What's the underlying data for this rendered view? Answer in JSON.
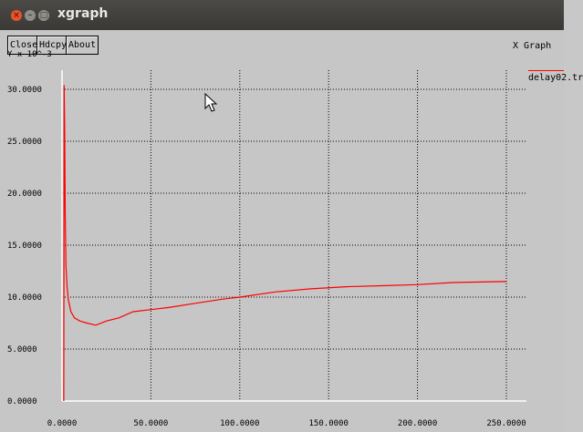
{
  "window": {
    "title": "xgraph",
    "controls": [
      "close-icon",
      "minimize-icon",
      "maximize-icon"
    ]
  },
  "toolbar": {
    "close_label": "Close",
    "hdcpy_label": "Hdcpy",
    "about_label": "About"
  },
  "graph_title": "X Graph",
  "y_units": "Y x 10^-3",
  "legend": {
    "label": "delay02.tr"
  },
  "colors": {
    "series": "#ff0000",
    "axis": "#ffffff",
    "grid": "#000000",
    "background": "#c6c6c6"
  },
  "chart_data": {
    "type": "line",
    "title": "X Graph",
    "xlabel": "",
    "ylabel": "Y x 10^-3",
    "xlim": [
      0,
      250000
    ],
    "ylim": [
      0,
      30000
    ],
    "grid": true,
    "legend": "top-right",
    "x_ticks": [
      "0.0000",
      "50.0000",
      "100.0000",
      "150.0000",
      "200.0000",
      "250.0000"
    ],
    "y_ticks": [
      "0.0000",
      "5.0000",
      "10.0000",
      "15.0000",
      "20.0000",
      "25.0000",
      "30.0000"
    ],
    "series": [
      {
        "name": "delay02.tr",
        "x": [
          1000,
          1200,
          1500,
          1800,
          2200,
          2800,
          3500,
          5000,
          7000,
          10000,
          14000,
          19000,
          25000,
          32000,
          40000,
          50000,
          60000,
          75000,
          90000,
          100000,
          120000,
          140000,
          160000,
          180000,
          200000,
          220000,
          250000
        ],
        "y": [
          0,
          30400,
          26000,
          18000,
          13000,
          11000,
          9800,
          8600,
          8000,
          7700,
          7500,
          7300,
          7700,
          8000,
          8600,
          8800,
          9000,
          9400,
          9800,
          10000,
          10500,
          10800,
          11000,
          11100,
          11200,
          11400,
          11500
        ]
      }
    ]
  }
}
